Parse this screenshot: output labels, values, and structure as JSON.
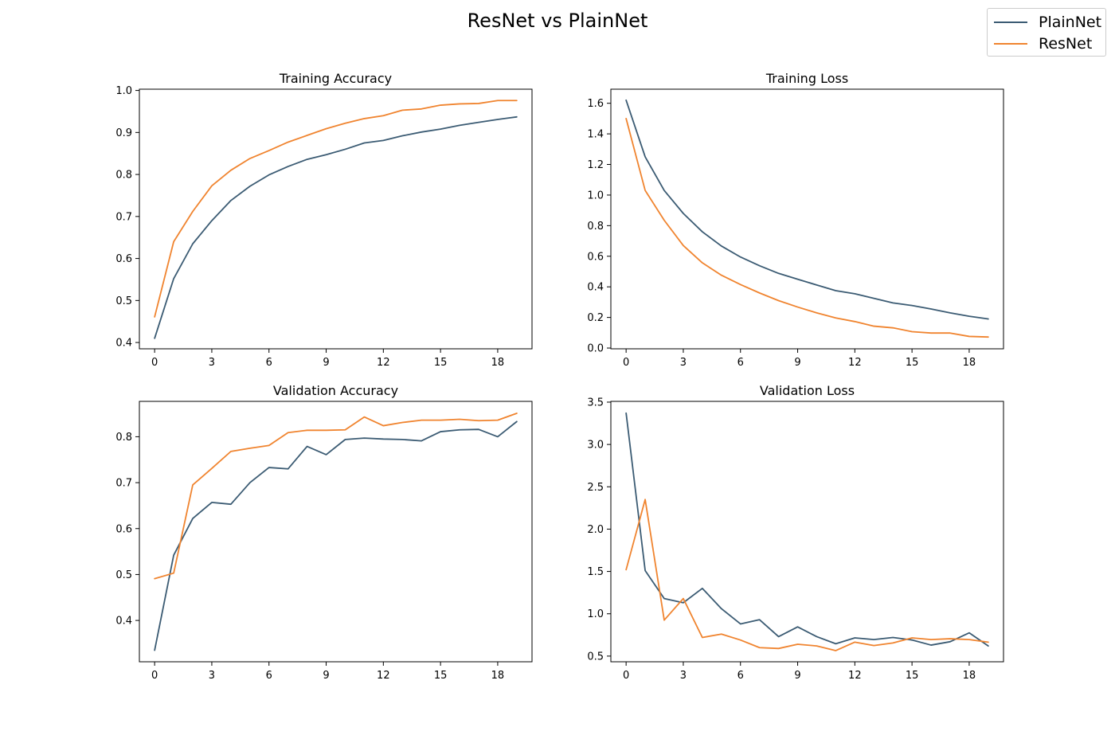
{
  "figure": {
    "title": "ResNet vs PlainNet",
    "colors": {
      "PlainNet": "#3b5b73",
      "ResNet": "#f0842f"
    }
  },
  "legend": {
    "entries": [
      {
        "name": "PlainNet",
        "color": "#3b5b73"
      },
      {
        "name": "ResNet",
        "color": "#f0842f"
      }
    ]
  },
  "chart_data": [
    {
      "type": "line",
      "title": "Training Accuracy",
      "xlabel": "",
      "ylabel": "",
      "x": [
        0,
        1,
        2,
        3,
        4,
        5,
        6,
        7,
        8,
        9,
        10,
        11,
        12,
        13,
        14,
        15,
        16,
        17,
        18,
        19
      ],
      "xlim": [
        -0.8,
        19.8
      ],
      "ylim": [
        0.385,
        1.003
      ],
      "xticks": [
        0,
        3,
        6,
        9,
        12,
        15,
        18
      ],
      "xtick_labels": [
        "0",
        "3",
        "6",
        "9",
        "12",
        "15",
        "18"
      ],
      "yticks": [
        0.4,
        0.5,
        0.6,
        0.7,
        0.8,
        0.9,
        1.0
      ],
      "ytick_labels": [
        "0.4",
        "0.5",
        "0.6",
        "0.7",
        "0.8",
        "0.9",
        "1.0"
      ],
      "grid": false,
      "series": [
        {
          "name": "PlainNet",
          "values": [
            0.41,
            0.552,
            0.635,
            0.69,
            0.738,
            0.772,
            0.799,
            0.819,
            0.836,
            0.847,
            0.86,
            0.875,
            0.881,
            0.892,
            0.901,
            0.908,
            0.917,
            0.924,
            0.931,
            0.937
          ]
        },
        {
          "name": "ResNet",
          "values": [
            0.461,
            0.64,
            0.712,
            0.773,
            0.81,
            0.838,
            0.857,
            0.877,
            0.893,
            0.909,
            0.922,
            0.933,
            0.94,
            0.953,
            0.956,
            0.965,
            0.968,
            0.969,
            0.976,
            0.976
          ]
        }
      ]
    },
    {
      "type": "line",
      "title": "Training Loss",
      "xlabel": "",
      "ylabel": "",
      "x": [
        0,
        1,
        2,
        3,
        4,
        5,
        6,
        7,
        8,
        9,
        10,
        11,
        12,
        13,
        14,
        15,
        16,
        17,
        18,
        19
      ],
      "xlim": [
        -0.8,
        19.8
      ],
      "ylim": [
        -0.005,
        1.692
      ],
      "xticks": [
        0,
        3,
        6,
        9,
        12,
        15,
        18
      ],
      "xtick_labels": [
        "0",
        "3",
        "6",
        "9",
        "12",
        "15",
        "18"
      ],
      "yticks": [
        0.0,
        0.2,
        0.4,
        0.6,
        0.8,
        1.0,
        1.2,
        1.4,
        1.6
      ],
      "ytick_labels": [
        "0.0",
        "0.2",
        "0.4",
        "0.6",
        "0.8",
        "1.0",
        "1.2",
        "1.4",
        "1.6"
      ],
      "grid": false,
      "series": [
        {
          "name": "PlainNet",
          "values": [
            1.62,
            1.25,
            1.03,
            0.88,
            0.76,
            0.667,
            0.595,
            0.538,
            0.488,
            0.45,
            0.412,
            0.375,
            0.355,
            0.325,
            0.295,
            0.278,
            0.255,
            0.23,
            0.208,
            0.19
          ]
        },
        {
          "name": "ResNet",
          "values": [
            1.5,
            1.03,
            0.835,
            0.67,
            0.557,
            0.476,
            0.415,
            0.36,
            0.31,
            0.268,
            0.23,
            0.197,
            0.173,
            0.143,
            0.132,
            0.107,
            0.098,
            0.098,
            0.076,
            0.072
          ]
        }
      ]
    },
    {
      "type": "line",
      "title": "Validation Accuracy",
      "xlabel": "",
      "ylabel": "",
      "x": [
        0,
        1,
        2,
        3,
        4,
        5,
        6,
        7,
        8,
        9,
        10,
        11,
        12,
        13,
        14,
        15,
        16,
        17,
        18,
        19
      ],
      "xlim": [
        -0.8,
        19.8
      ],
      "ylim": [
        0.31,
        0.877
      ],
      "xticks": [
        0,
        3,
        6,
        9,
        12,
        15,
        18
      ],
      "xtick_labels": [
        "0",
        "3",
        "6",
        "9",
        "12",
        "15",
        "18"
      ],
      "yticks": [
        0.4,
        0.5,
        0.6,
        0.7,
        0.8
      ],
      "ytick_labels": [
        "0.4",
        "0.5",
        "0.6",
        "0.7",
        "0.8"
      ],
      "grid": false,
      "series": [
        {
          "name": "PlainNet",
          "values": [
            0.335,
            0.542,
            0.622,
            0.657,
            0.653,
            0.7,
            0.733,
            0.73,
            0.779,
            0.761,
            0.794,
            0.797,
            0.795,
            0.794,
            0.791,
            0.811,
            0.815,
            0.816,
            0.8,
            0.833
          ]
        },
        {
          "name": "ResNet",
          "values": [
            0.491,
            0.503,
            0.695,
            0.731,
            0.768,
            0.775,
            0.781,
            0.809,
            0.814,
            0.814,
            0.815,
            0.843,
            0.824,
            0.831,
            0.836,
            0.836,
            0.838,
            0.835,
            0.836,
            0.851
          ]
        }
      ]
    },
    {
      "type": "line",
      "title": "Validation Loss",
      "xlabel": "",
      "ylabel": "",
      "x": [
        0,
        1,
        2,
        3,
        4,
        5,
        6,
        7,
        8,
        9,
        10,
        11,
        12,
        13,
        14,
        15,
        16,
        17,
        18,
        19
      ],
      "xlim": [
        -0.8,
        19.8
      ],
      "ylim": [
        0.433,
        3.509
      ],
      "xticks": [
        0,
        3,
        6,
        9,
        12,
        15,
        18
      ],
      "xtick_labels": [
        "0",
        "3",
        "6",
        "9",
        "12",
        "15",
        "18"
      ],
      "yticks": [
        0.5,
        1.0,
        1.5,
        2.0,
        2.5,
        3.0,
        3.5
      ],
      "ytick_labels": [
        "0.5",
        "1.0",
        "1.5",
        "2.0",
        "2.5",
        "3.0",
        "3.5"
      ],
      "grid": false,
      "series": [
        {
          "name": "PlainNet",
          "values": [
            3.37,
            1.51,
            1.18,
            1.13,
            1.3,
            1.06,
            0.88,
            0.93,
            0.73,
            0.845,
            0.73,
            0.646,
            0.715,
            0.695,
            0.72,
            0.69,
            0.63,
            0.67,
            0.775,
            0.62
          ]
        },
        {
          "name": "ResNet",
          "values": [
            1.52,
            2.35,
            0.925,
            1.18,
            0.72,
            0.76,
            0.69,
            0.6,
            0.59,
            0.64,
            0.62,
            0.565,
            0.665,
            0.625,
            0.655,
            0.715,
            0.695,
            0.705,
            0.695,
            0.665
          ]
        }
      ]
    }
  ]
}
